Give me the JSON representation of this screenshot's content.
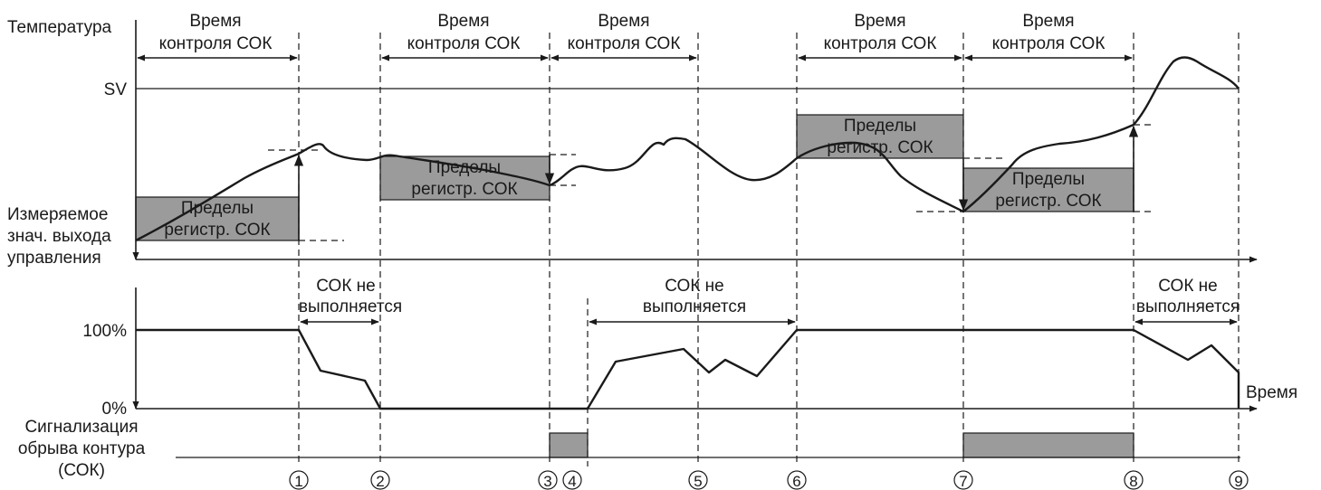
{
  "labels": {
    "y_temperature": "Температура",
    "sv": "SV",
    "measured_1": "Измеряемое",
    "measured_2": "знач. выхода",
    "measured_3": "управления",
    "pct_100": "100%",
    "pct_0": "0%",
    "time": "Время",
    "alarm_1": "Сигнализация",
    "alarm_2": "обрыва контура",
    "alarm_3": "(СОК)"
  },
  "control_time": {
    "line1": "Время",
    "line2": "контроля СОК"
  },
  "limits": {
    "line1": "Пределы",
    "line2": "регистр. СОК"
  },
  "not_executed": {
    "line1": "СОК не",
    "line2": "выполняется"
  },
  "markers": [
    "1",
    "2",
    "3",
    "4",
    "5",
    "6",
    "7",
    "8",
    "9"
  ],
  "colors": {
    "line": "#1a1a1a",
    "box_fill": "#9b9b9b",
    "background": "#ffffff"
  }
}
